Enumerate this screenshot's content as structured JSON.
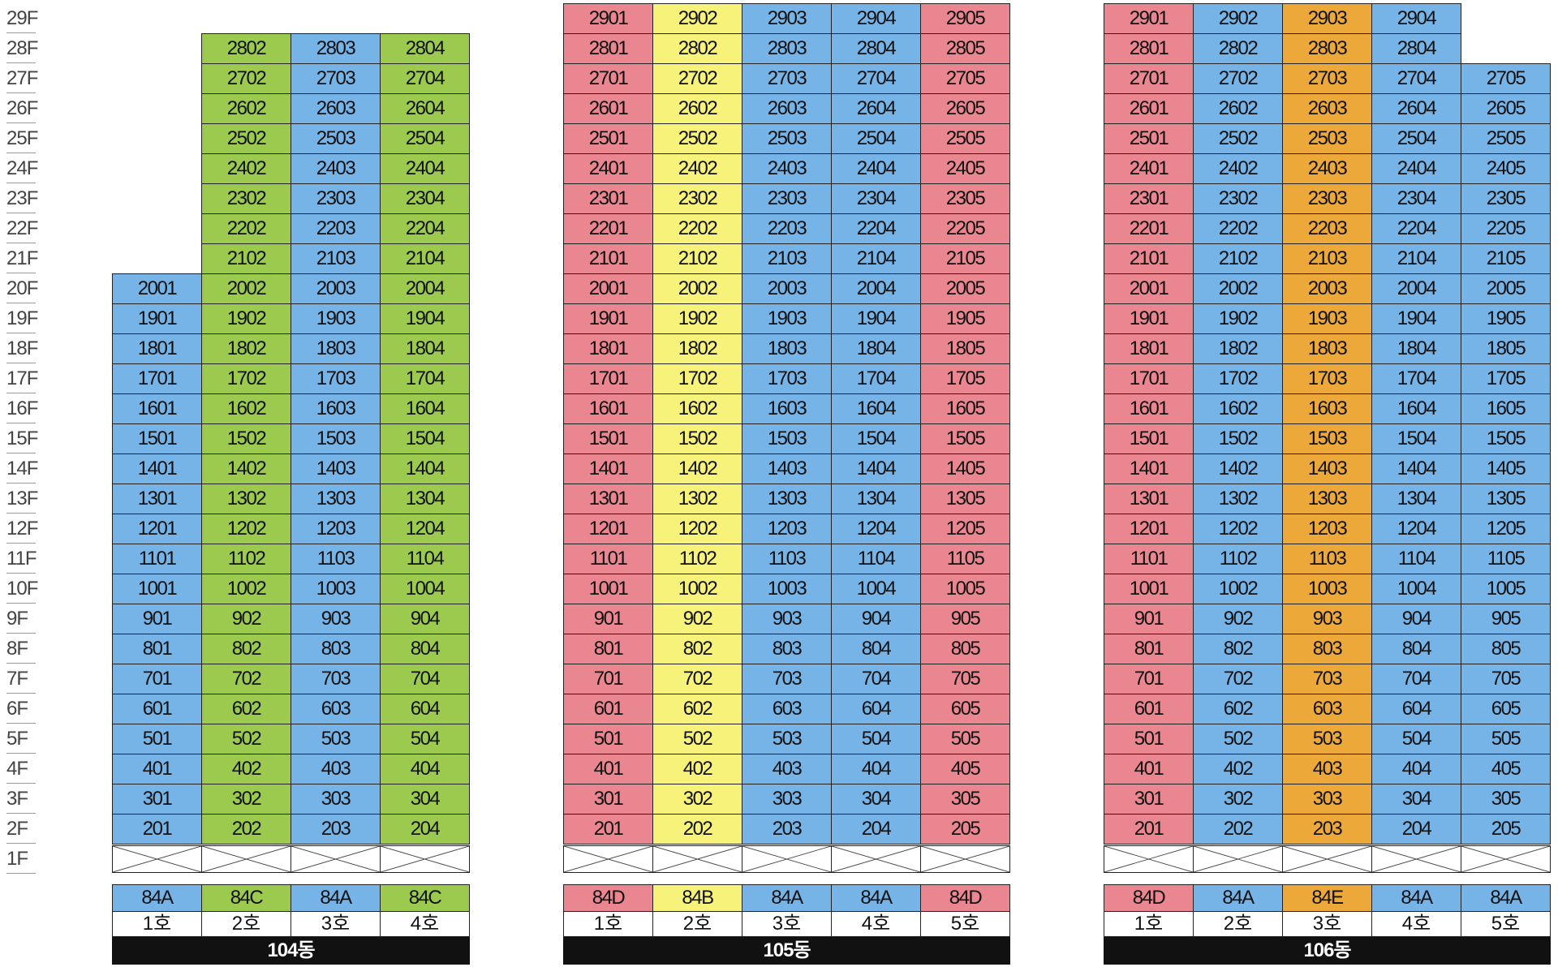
{
  "colors": {
    "blue": "#76b3e7",
    "green": "#9bca4f",
    "pink": "#e9868f",
    "yellow": "#f6f27a",
    "orange": "#eca93a",
    "label_bar": "#111111"
  },
  "floor_labels": [
    "29F",
    "28F",
    "27F",
    "26F",
    "25F",
    "24F",
    "23F",
    "22F",
    "21F",
    "20F",
    "19F",
    "18F",
    "17F",
    "16F",
    "15F",
    "14F",
    "13F",
    "12F",
    "11F",
    "10F",
    "9F",
    "8F",
    "7F",
    "6F",
    "5F",
    "4F",
    "3F",
    "2F",
    "1F"
  ],
  "buildings": [
    {
      "name": "104동",
      "columns": [
        {
          "line": 1,
          "ho_label": "1호",
          "type": "84A",
          "color": "blue",
          "top_floor": 20
        },
        {
          "line": 2,
          "ho_label": "2호",
          "type": "84C",
          "color": "green",
          "top_floor": 28
        },
        {
          "line": 3,
          "ho_label": "3호",
          "type": "84A",
          "color": "blue",
          "top_floor": 28
        },
        {
          "line": 4,
          "ho_label": "4호",
          "type": "84C",
          "color": "green",
          "top_floor": 28
        }
      ]
    },
    {
      "name": "105동",
      "columns": [
        {
          "line": 1,
          "ho_label": "1호",
          "type": "84D",
          "color": "pink",
          "top_floor": 29
        },
        {
          "line": 2,
          "ho_label": "2호",
          "type": "84B",
          "color": "yellow",
          "top_floor": 29
        },
        {
          "line": 3,
          "ho_label": "3호",
          "type": "84A",
          "color": "blue",
          "top_floor": 29
        },
        {
          "line": 4,
          "ho_label": "4호",
          "type": "84A",
          "color": "blue",
          "top_floor": 29
        },
        {
          "line": 5,
          "ho_label": "5호",
          "type": "84D",
          "color": "pink",
          "top_floor": 29
        }
      ]
    },
    {
      "name": "106동",
      "columns": [
        {
          "line": 1,
          "ho_label": "1호",
          "type": "84D",
          "color": "pink",
          "top_floor": 29
        },
        {
          "line": 2,
          "ho_label": "2호",
          "type": "84A",
          "color": "blue",
          "top_floor": 29
        },
        {
          "line": 3,
          "ho_label": "3호",
          "type": "84E",
          "color": "orange",
          "top_floor": 29
        },
        {
          "line": 4,
          "ho_label": "4호",
          "type": "84A",
          "color": "blue",
          "top_floor": 29
        },
        {
          "line": 5,
          "ho_label": "5호",
          "type": "84A",
          "color": "blue",
          "top_floor": 27
        }
      ]
    }
  ]
}
